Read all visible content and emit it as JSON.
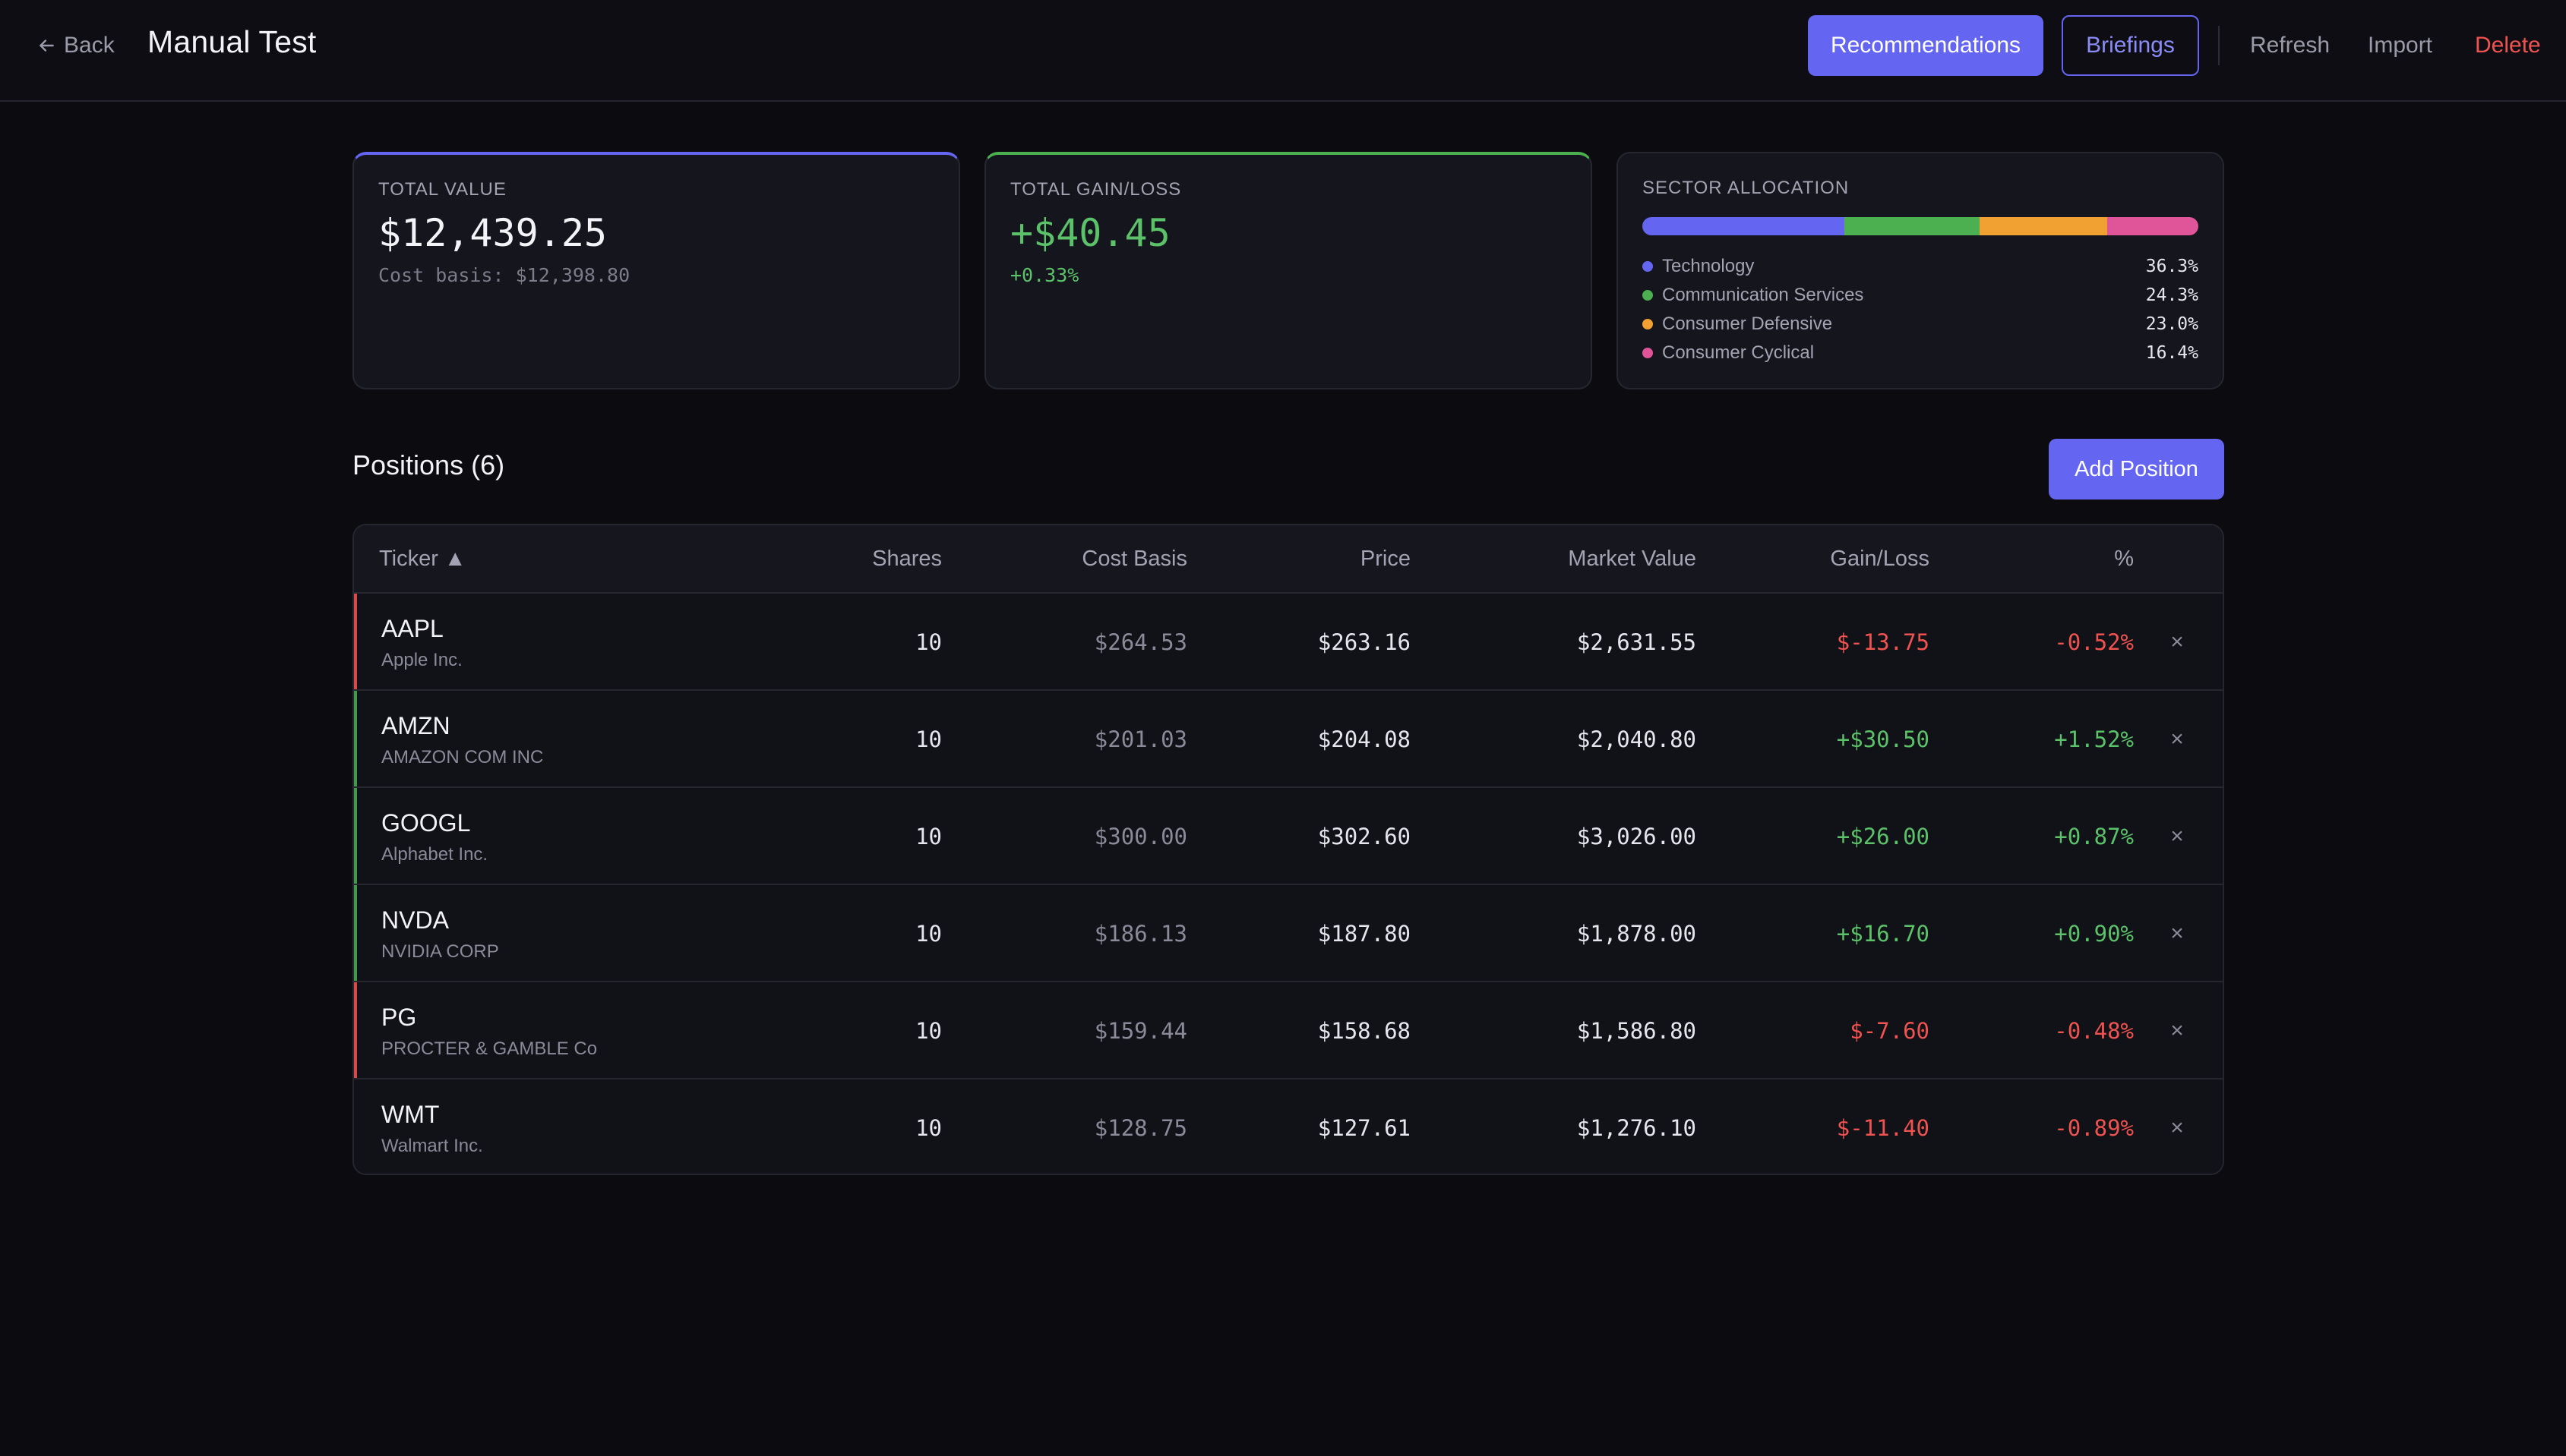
{
  "header": {
    "back_label": "Back",
    "title": "Manual Test",
    "recommendations_label": "Recommendations",
    "briefings_label": "Briefings",
    "refresh_label": "Refresh",
    "import_label": "Import",
    "delete_label": "Delete"
  },
  "summary": {
    "total_value": {
      "label": "TOTAL VALUE",
      "value": "$12,439.25",
      "sub": "Cost basis: $12,398.80"
    },
    "total_gain": {
      "label": "TOTAL GAIN/LOSS",
      "value": "+$40.45",
      "sub": "+0.33%"
    },
    "sector": {
      "label": "SECTOR ALLOCATION",
      "items": [
        {
          "name": "Technology",
          "pct": "36.3%",
          "share": 36.3,
          "color": "#6466f1"
        },
        {
          "name": "Communication Services",
          "pct": "24.3%",
          "share": 24.3,
          "color": "#4caf50"
        },
        {
          "name": "Consumer Defensive",
          "pct": "23.0%",
          "share": 23.0,
          "color": "#f0a132"
        },
        {
          "name": "Consumer Cyclical",
          "pct": "16.4%",
          "share": 16.4,
          "color": "#e0559a"
        }
      ]
    }
  },
  "positions": {
    "title": "Positions (6)",
    "add_label": "Add Position",
    "columns": {
      "ticker": "Ticker ▲",
      "shares": "Shares",
      "cost": "Cost Basis",
      "price": "Price",
      "market_value": "Market Value",
      "gain": "Gain/Loss",
      "pct": "%"
    },
    "rows": [
      {
        "ticker": "AAPL",
        "name": "Apple Inc.",
        "shares": "10",
        "cost": "$264.53",
        "price": "$263.16",
        "mv": "$2,631.55",
        "gl": "$-13.75",
        "pct": "-0.52%",
        "dir": "neg",
        "accent": "#d84a4a",
        "remove": "×"
      },
      {
        "ticker": "AMZN",
        "name": "AMAZON COM INC",
        "shares": "10",
        "cost": "$201.03",
        "price": "$204.08",
        "mv": "$2,040.80",
        "gl": "+$30.50",
        "pct": "+1.52%",
        "dir": "pos",
        "accent": "#3f9a4a",
        "remove": "×"
      },
      {
        "ticker": "GOOGL",
        "name": "Alphabet Inc.",
        "shares": "10",
        "cost": "$300.00",
        "price": "$302.60",
        "mv": "$3,026.00",
        "gl": "+$26.00",
        "pct": "+0.87%",
        "dir": "pos",
        "accent": "#3f9a4a",
        "remove": "×"
      },
      {
        "ticker": "NVDA",
        "name": "NVIDIA CORP",
        "shares": "10",
        "cost": "$186.13",
        "price": "$187.80",
        "mv": "$1,878.00",
        "gl": "+$16.70",
        "pct": "+0.90%",
        "dir": "pos",
        "accent": "#3f9a4a",
        "remove": "×"
      },
      {
        "ticker": "PG",
        "name": "PROCTER & GAMBLE Co",
        "shares": "10",
        "cost": "$159.44",
        "price": "$158.68",
        "mv": "$1,586.80",
        "gl": "$-7.60",
        "pct": "-0.48%",
        "dir": "neg",
        "accent": "#d84a4a",
        "remove": "×"
      },
      {
        "ticker": "WMT",
        "name": "Walmart Inc.",
        "shares": "10",
        "cost": "$128.75",
        "price": "$127.61",
        "mv": "$1,276.10",
        "gl": "$-11.40",
        "pct": "-0.89%",
        "dir": "neg",
        "accent": "",
        "remove": "×"
      }
    ]
  }
}
